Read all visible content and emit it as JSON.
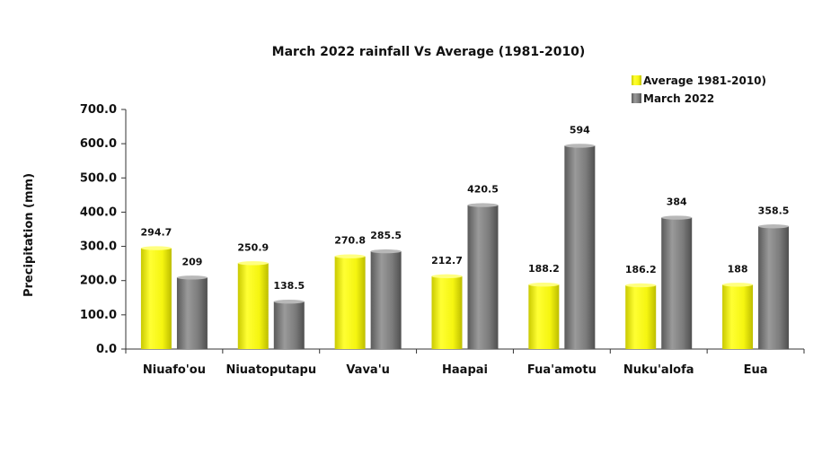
{
  "chart_data": {
    "type": "bar",
    "title": "March 2022 rainfall Vs Average (1981-2010)",
    "ylabel": "Precipitation (mm)",
    "xlabel": "",
    "ylim": [
      0,
      700
    ],
    "yticks": [
      "0.0",
      "100.0",
      "200.0",
      "300.0",
      "400.0",
      "500.0",
      "600.0",
      "700.0"
    ],
    "categories": [
      "Niuafo'ou",
      "Niuatoputapu",
      "Vava'u",
      "Haapai",
      "Fua'amotu",
      "Nuku'alofa",
      "Eua"
    ],
    "series": [
      {
        "name": "Average 1981-2010)",
        "color": "#f2f20a",
        "values": [
          294.7,
          250.9,
          270.8,
          212.7,
          188.2,
          186.2,
          188
        ],
        "labels": [
          "294.7",
          "250.9",
          "270.8",
          "212.7",
          "188.2",
          "186.2",
          "188"
        ]
      },
      {
        "name": "March 2022",
        "color": "#7a7a7a",
        "values": [
          209,
          138.5,
          285.5,
          420.5,
          594,
          384,
          358.5
        ],
        "labels": [
          "209",
          "138.5",
          "285.5",
          "420.5",
          "594",
          "384",
          "358.5"
        ]
      }
    ],
    "legend": "top-right",
    "grid": false
  }
}
